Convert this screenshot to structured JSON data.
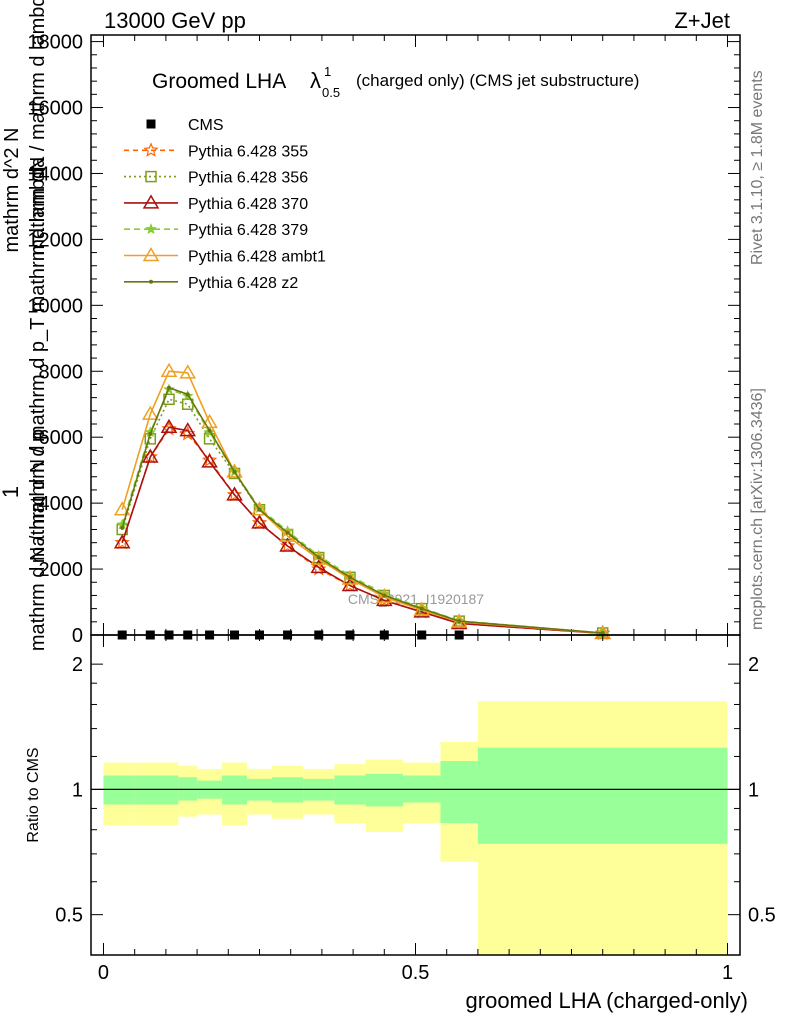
{
  "header": {
    "energy": "13000 GeV pp",
    "process": "Z+Jet"
  },
  "main_title": {
    "prefix": "Groomed LHA",
    "lambda": "λ",
    "sup": "1",
    "sub": "0.5",
    "suffix": "(charged only) (CMS jet substructure)"
  },
  "side": {
    "rivet": "Rivet 3.1.10, ≥ 1.8M events",
    "mcplots": "mcplots.cern.ch [arXiv:1306.3436]"
  },
  "watermark": "CMS_2021_I1920187",
  "y_axis_label_lines": [
    "1",
    "mathrm d N / mathrm d p",
    "mathrm d N / mathrm d p_T mathrm d lambda",
    "mathrm d^2 N",
    "mathrm dN / mathrm d lambda"
  ],
  "chart_data": [
    {
      "type": "line",
      "panel": "main",
      "x_ticks": [
        0,
        0.5,
        1
      ],
      "xlim": [
        -0.02,
        1.02
      ],
      "ylim": [
        0,
        18200
      ],
      "y_ticks": [
        0,
        2000,
        4000,
        6000,
        8000,
        10000,
        12000,
        14000,
        16000,
        18000
      ],
      "y_tick_labels": [
        "0",
        "2000",
        "4000",
        "6000",
        "8000",
        "10000",
        "12000",
        "14000",
        "16000",
        "18000"
      ],
      "grid": false,
      "legend_position": "top-left",
      "x": [
        0.03,
        0.075,
        0.105,
        0.135,
        0.17,
        0.21,
        0.25,
        0.295,
        0.345,
        0.395,
        0.45,
        0.51,
        0.57,
        0.8
      ],
      "series": [
        {
          "name": "CMS",
          "color": "#000000",
          "marker": "square",
          "dash": "none",
          "values": [
            0,
            0,
            0,
            0,
            0,
            0,
            0,
            0,
            0,
            0,
            0,
            0,
            0,
            null
          ]
        },
        {
          "name": "Pythia 6.428 355",
          "color": "#ff6600",
          "marker": "star",
          "dash": "5,4",
          "values": [
            2800,
            5400,
            6250,
            6100,
            5300,
            4250,
            3400,
            2700,
            2000,
            1500,
            1050,
            700,
            350,
            50
          ]
        },
        {
          "name": "Pythia 6.428 356",
          "color": "#7d9c1e",
          "marker": "square-open",
          "dash": "2,3",
          "values": [
            3200,
            5950,
            7150,
            7000,
            5950,
            4900,
            3800,
            3050,
            2350,
            1750,
            1200,
            800,
            420,
            60
          ]
        },
        {
          "name": "Pythia 6.428 370",
          "color": "#aa1111",
          "marker": "triangle-open",
          "dash": "none",
          "values": [
            2800,
            5400,
            6300,
            6200,
            5250,
            4250,
            3400,
            2700,
            2050,
            1500,
            1050,
            700,
            350,
            50
          ]
        },
        {
          "name": "Pythia 6.428 379",
          "color": "#88cc33",
          "marker": "star-small",
          "dash": "6,4",
          "values": [
            3350,
            6150,
            7450,
            7250,
            6150,
            4950,
            3850,
            3150,
            2400,
            1800,
            1250,
            820,
            430,
            60
          ]
        },
        {
          "name": "Pythia 6.428 ambt1",
          "color": "#f0a020",
          "marker": "triangle-open",
          "dash": "none",
          "values": [
            3800,
            6700,
            8000,
            7950,
            6450,
            4950,
            3800,
            3000,
            2300,
            1700,
            1150,
            760,
            400,
            55
          ]
        },
        {
          "name": "Pythia 6.428 z2",
          "color": "#667711",
          "marker": "dot",
          "dash": "none",
          "values": [
            3250,
            6100,
            7500,
            7300,
            6200,
            4950,
            3800,
            3100,
            2350,
            1750,
            1200,
            800,
            420,
            60
          ]
        }
      ]
    },
    {
      "type": "area",
      "panel": "ratio",
      "ylabel": "Ratio to CMS",
      "xlabel": "groomed LHA (charged-only)",
      "x_ticks": [
        0,
        0.5,
        1
      ],
      "x_tick_labels": [
        "0",
        "0.5",
        "1"
      ],
      "xlim": [
        -0.02,
        1.02
      ],
      "ylim": [
        0.4,
        2.35
      ],
      "scale": "log",
      "y_ticks": [
        0.5,
        1,
        2
      ],
      "y_tick_labels": [
        "0.5",
        "1",
        "2"
      ],
      "reference_line": 1,
      "bin_edges": [
        0,
        0.05,
        0.12,
        0.15,
        0.19,
        0.23,
        0.27,
        0.32,
        0.37,
        0.42,
        0.48,
        0.54,
        0.6,
        1
      ],
      "inner_band": {
        "color": "#99ff99",
        "lower": [
          0.92,
          0.92,
          0.94,
          0.95,
          0.92,
          0.94,
          0.93,
          0.94,
          0.92,
          0.91,
          0.93,
          0.83,
          0.74,
          0.79
        ],
        "upper": [
          1.08,
          1.08,
          1.07,
          1.05,
          1.08,
          1.06,
          1.07,
          1.06,
          1.08,
          1.09,
          1.08,
          1.17,
          1.26,
          1.24
        ]
      },
      "outer_band": {
        "color": "#ffff99",
        "lower": [
          0.82,
          0.82,
          0.86,
          0.87,
          0.82,
          0.87,
          0.85,
          0.87,
          0.83,
          0.79,
          0.83,
          0.67,
          0.36,
          0.43
        ],
        "upper": [
          1.16,
          1.16,
          1.14,
          1.12,
          1.16,
          1.12,
          1.14,
          1.12,
          1.15,
          1.18,
          1.16,
          1.3,
          1.63,
          1.57
        ]
      }
    }
  ]
}
